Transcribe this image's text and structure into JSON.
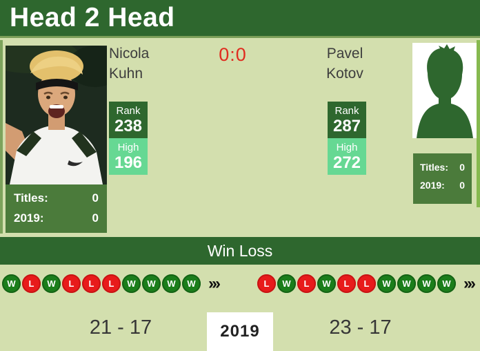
{
  "title": "Head 2 Head",
  "score": "0:0",
  "win_loss_header": "Win Loss",
  "year_box": "2019",
  "more_icon": "›››",
  "colors": {
    "dark_green": "#2e672e",
    "light_bg": "#d3dfae",
    "mint": "#66d893",
    "win_green": "#1b7e1b",
    "loss_red": "#e81b1b",
    "score_red": "#e02b1f"
  },
  "players": {
    "left": {
      "first": "Nicola",
      "last": "Kuhn",
      "rank_label": "Rank",
      "rank": "238",
      "high_label": "High",
      "high": "196",
      "titles_label": "Titles:",
      "titles": "0",
      "year_label": "2019:",
      "year_titles": "0",
      "results": [
        "W",
        "L",
        "W",
        "L",
        "L",
        "L",
        "W",
        "W",
        "W",
        "W"
      ],
      "summary": "21 - 17"
    },
    "right": {
      "first": "Pavel",
      "last": "Kotov",
      "rank_label": "Rank",
      "rank": "287",
      "high_label": "High",
      "high": "272",
      "titles_label": "Titles:",
      "titles": "0",
      "year_label": "2019:",
      "year_titles": "0",
      "results": [
        "L",
        "W",
        "L",
        "W",
        "L",
        "L",
        "W",
        "W",
        "W",
        "W"
      ],
      "summary": "23 - 17"
    }
  }
}
